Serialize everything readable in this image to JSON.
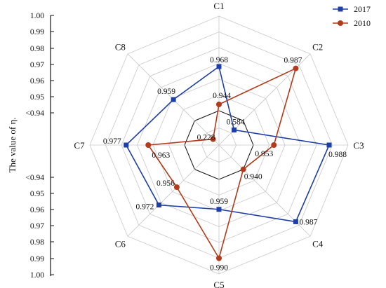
{
  "chart_data": {
    "type": "radar",
    "categories": [
      "C1",
      "C2",
      "C3",
      "C4",
      "C5",
      "C6",
      "C7",
      "C8"
    ],
    "series": [
      {
        "name": "2017",
        "color": "#1f3fa8",
        "marker": "square",
        "values": [
          0.968,
          0.584,
          0.988,
          0.987,
          0.959,
          0.972,
          0.977,
          0.959
        ],
        "labels": [
          "0.968",
          "0.584",
          "0.988",
          "0.987",
          "0.959",
          "0.972",
          "0.977",
          "0.959"
        ]
      },
      {
        "name": "2010",
        "color": "#b33a1a",
        "marker": "circle",
        "values": [
          0.944,
          0.987,
          0.953,
          0.94,
          0.99,
          0.956,
          0.963,
          0.228
        ],
        "labels": [
          "0.944",
          "0.987",
          "0.953",
          "0.940",
          "0.990",
          "0.956",
          "0.963",
          "0.228"
        ]
      }
    ],
    "ylabel": "The value of η.",
    "yticks_top": [
      "1.00",
      "0.99",
      "0.98",
      "0.97",
      "0.96",
      "0.95",
      "<0.94"
    ],
    "yticks_bottom": [
      "<0.94",
      "0.95",
      "0.96",
      "0.97",
      "0.98",
      "0.99",
      "1.00"
    ],
    "rings": [
      0.94,
      0.95,
      0.96,
      0.97,
      0.98,
      0.99,
      1.0
    ],
    "legend_position": "top-right",
    "grid": true
  }
}
